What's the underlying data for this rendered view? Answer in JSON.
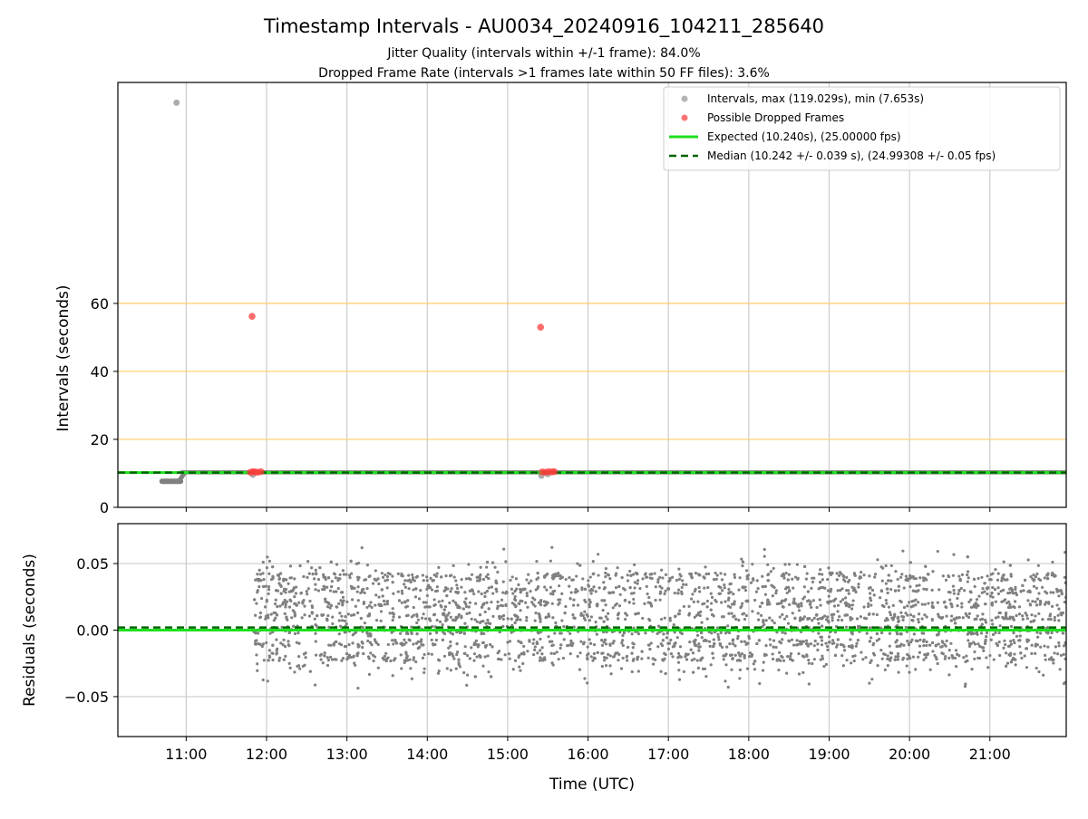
{
  "figure": {
    "title": "Timestamp Intervals - AU0034_20240916_104211_285640",
    "subtitle_jitter": "Jitter Quality (intervals within +/-1 frame): 84.0%",
    "subtitle_dropped": "Dropped Frame Rate (intervals >1 frames late within 50 FF files): 3.6%"
  },
  "colors": {
    "intervals": "#808080",
    "dropped": "#ff3b3b",
    "expected": "#1fe01f",
    "median": "#006400",
    "threshold": "#ffcc66",
    "grid": "#cccccc"
  },
  "chart_data": [
    {
      "type": "scatter",
      "panel": "intervals",
      "xlabel": "Time (UTC)",
      "ylabel": "Intervals (seconds)",
      "xlim": [
        10.15,
        21.95
      ],
      "ylim": [
        0,
        125
      ],
      "x_ticks": [
        11,
        12,
        13,
        14,
        15,
        16,
        17,
        18,
        19,
        20,
        21
      ],
      "x_tick_labels": [
        "11:00",
        "12:00",
        "13:00",
        "14:00",
        "15:00",
        "16:00",
        "17:00",
        "18:00",
        "19:00",
        "20:00",
        "21:00"
      ],
      "y_ticks": [
        0,
        20,
        40,
        60
      ],
      "y_tick_labels": [
        "0",
        "20",
        "40",
        "60"
      ],
      "threshold_lines": [
        20,
        40,
        60
      ],
      "grid": true,
      "legend_position": "top-right",
      "legend": [
        "Intervals, max (119.029s), min (7.653s)",
        "Possible Dropped Frames",
        "Expected (10.240s), (25.00000 fps)",
        "Median (10.242 +/- 0.039 s), (24.99308 +/- 0.05 fps)"
      ],
      "expected_interval": 10.24,
      "median_interval": 10.242,
      "early_segment": {
        "x_start": 10.7,
        "x_end": 10.93,
        "y": 7.653
      },
      "main_band": {
        "x_start": 10.93,
        "x_end": 21.95,
        "y_low": 9.7,
        "y_high": 10.9
      },
      "series": [
        {
          "name": "Intervals, max (119.029s), min (7.653s)",
          "points": [
            [
              10.88,
              119.029
            ],
            [
              11.83,
              9.6
            ],
            [
              15.42,
              9.3
            ],
            [
              15.5,
              9.8
            ]
          ]
        },
        {
          "name": "Possible Dropped Frames",
          "points": [
            [
              11.82,
              56.2
            ],
            [
              15.41,
              53.0
            ],
            [
              11.8,
              10.3
            ],
            [
              11.83,
              10.5
            ],
            [
              11.86,
              10.4
            ],
            [
              11.89,
              10.3
            ],
            [
              11.93,
              10.5
            ],
            [
              15.43,
              10.4
            ],
            [
              15.47,
              10.3
            ],
            [
              15.51,
              10.5
            ],
            [
              15.55,
              10.4
            ],
            [
              15.58,
              10.5
            ]
          ]
        }
      ]
    },
    {
      "type": "scatter",
      "panel": "residuals",
      "xlabel": "Time (UTC)",
      "ylabel": "Residuals (seconds)",
      "xlim": [
        10.15,
        21.95
      ],
      "ylim": [
        -0.08,
        0.08
      ],
      "y_ticks": [
        0.05,
        0.0,
        -0.05
      ],
      "y_tick_labels": [
        "0.05",
        "0.00",
        "−0.05"
      ],
      "grid": true,
      "expected_residual": 0.0,
      "median_residual": 0.002,
      "residual_cluster": {
        "x_start": 11.83,
        "x_end": 21.95,
        "levels": [
          -0.02,
          -0.01,
          0.0,
          0.01,
          0.02,
          0.03,
          0.04
        ],
        "min": -0.044,
        "max": 0.063
      }
    }
  ]
}
